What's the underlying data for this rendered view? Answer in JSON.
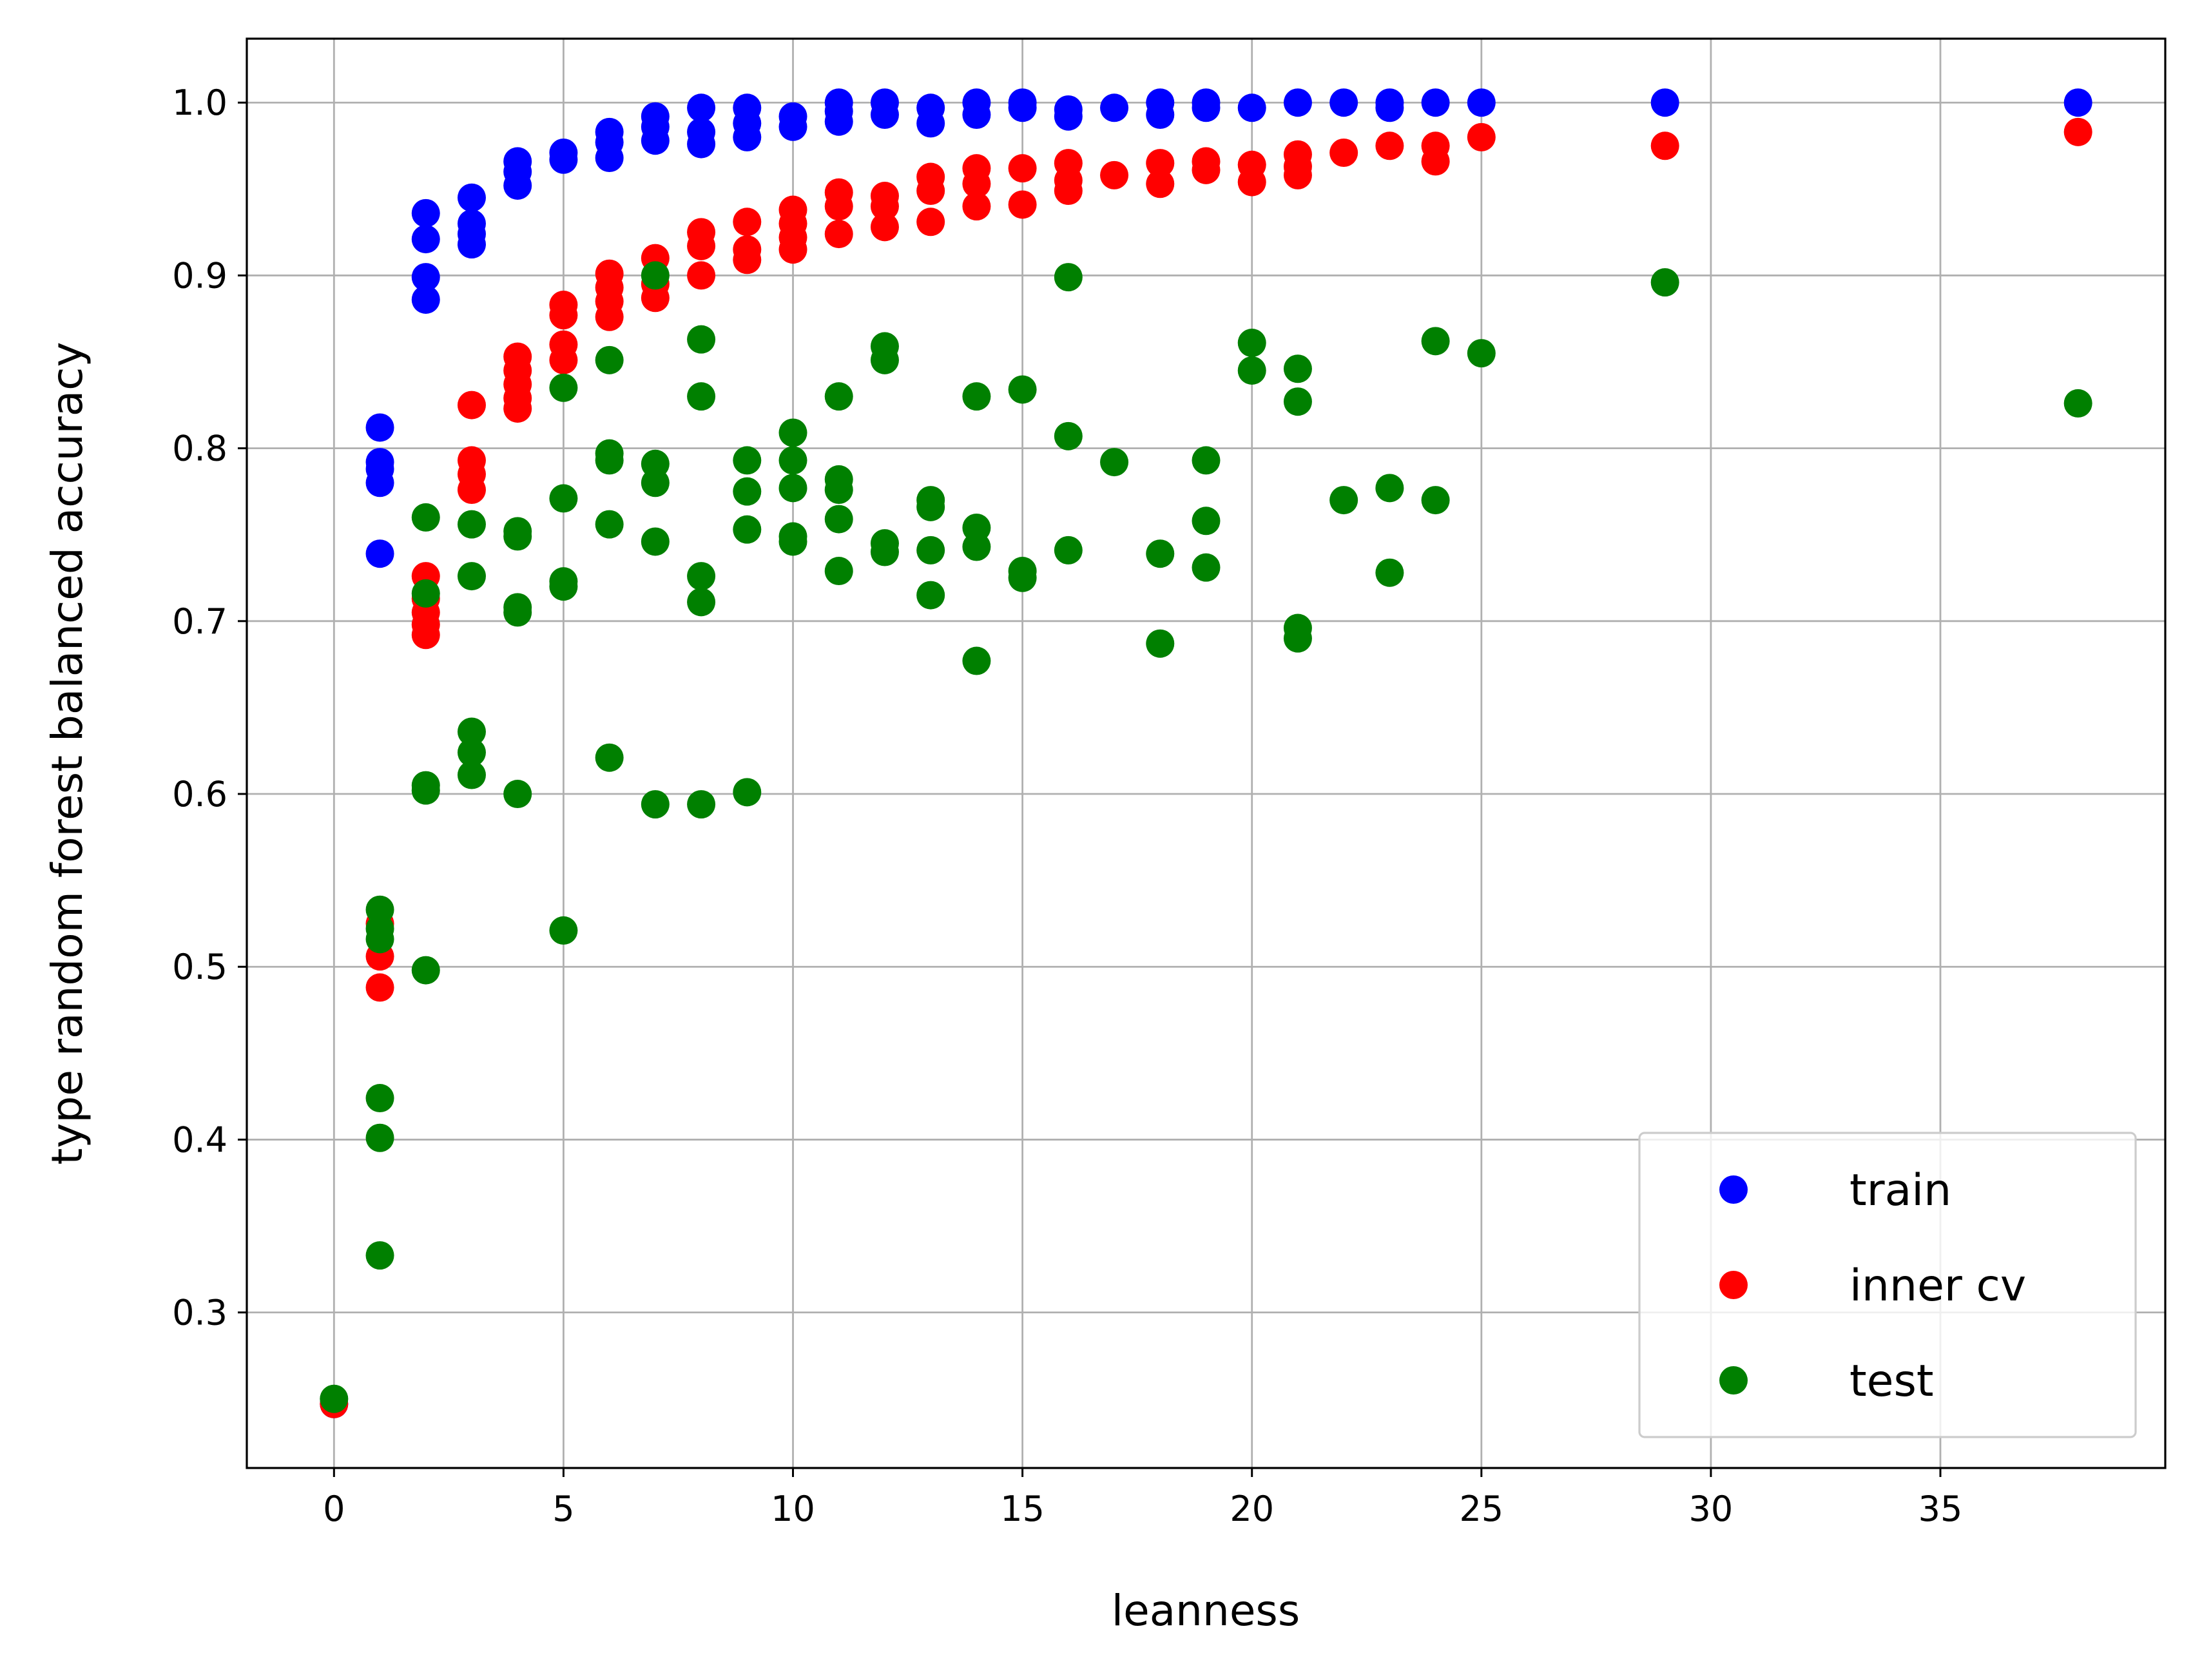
{
  "chart_data": {
    "type": "scatter",
    "title": "",
    "xlabel": "leanness",
    "ylabel": "type random forest balanced accuracy",
    "xlim": [
      -1.9,
      39.9
    ],
    "ylim": [
      0.21,
      1.037
    ],
    "xticks": [
      0,
      5,
      10,
      15,
      20,
      25,
      30,
      35
    ],
    "yticks": [
      0.3,
      0.4,
      0.5,
      0.6,
      0.7,
      0.8,
      0.9,
      1.0
    ],
    "xtick_labels": [
      "0",
      "5",
      "10",
      "15",
      "20",
      "25",
      "30",
      "35"
    ],
    "ytick_labels": [
      "0.3",
      "0.4",
      "0.5",
      "0.6",
      "0.7",
      "0.8",
      "0.9",
      "1.0"
    ],
    "grid": true,
    "legend_position": "lower-right",
    "series": [
      {
        "name": "train",
        "color": "#0000ff",
        "points": [
          [
            0,
            0.247
          ],
          [
            1,
            0.812
          ],
          [
            1,
            0.792
          ],
          [
            1,
            0.788
          ],
          [
            1,
            0.78
          ],
          [
            1,
            0.739
          ],
          [
            2,
            0.936
          ],
          [
            2,
            0.921
          ],
          [
            2,
            0.899
          ],
          [
            2,
            0.886
          ],
          [
            3,
            0.945
          ],
          [
            3,
            0.93
          ],
          [
            3,
            0.924
          ],
          [
            3,
            0.918
          ],
          [
            4,
            0.966
          ],
          [
            4,
            0.96
          ],
          [
            4,
            0.952
          ],
          [
            5,
            0.971
          ],
          [
            5,
            0.967
          ],
          [
            6,
            0.983
          ],
          [
            6,
            0.977
          ],
          [
            6,
            0.968
          ],
          [
            7,
            0.992
          ],
          [
            7,
            0.986
          ],
          [
            7,
            0.978
          ],
          [
            8,
            0.997
          ],
          [
            8,
            0.983
          ],
          [
            8,
            0.976
          ],
          [
            9,
            0.997
          ],
          [
            9,
            0.988
          ],
          [
            9,
            0.98
          ],
          [
            10,
            0.992
          ],
          [
            10,
            0.986
          ],
          [
            11,
            1.0
          ],
          [
            11,
            0.995
          ],
          [
            11,
            0.989
          ],
          [
            12,
            1.0
          ],
          [
            12,
            0.993
          ],
          [
            13,
            0.997
          ],
          [
            13,
            0.988
          ],
          [
            14,
            1.0
          ],
          [
            14,
            0.993
          ],
          [
            15,
            1.0
          ],
          [
            15,
            0.997
          ],
          [
            16,
            0.996
          ],
          [
            16,
            0.992
          ],
          [
            17,
            0.997
          ],
          [
            18,
            1.0
          ],
          [
            18,
            0.993
          ],
          [
            19,
            1.0
          ],
          [
            19,
            0.997
          ],
          [
            20,
            0.997
          ],
          [
            21,
            1.0
          ],
          [
            22,
            1.0
          ],
          [
            23,
            1.0
          ],
          [
            23,
            0.997
          ],
          [
            24,
            1.0
          ],
          [
            25,
            1.0
          ],
          [
            29,
            1.0
          ],
          [
            38,
            1.0
          ]
        ]
      },
      {
        "name": "inner cv",
        "color": "#ff0000",
        "points": [
          [
            0,
            0.247
          ],
          [
            1,
            0.525
          ],
          [
            1,
            0.506
          ],
          [
            1,
            0.488
          ],
          [
            2,
            0.726
          ],
          [
            2,
            0.713
          ],
          [
            2,
            0.705
          ],
          [
            2,
            0.698
          ],
          [
            2,
            0.692
          ],
          [
            3,
            0.825
          ],
          [
            3,
            0.793
          ],
          [
            3,
            0.785
          ],
          [
            3,
            0.776
          ],
          [
            4,
            0.853
          ],
          [
            4,
            0.845
          ],
          [
            4,
            0.837
          ],
          [
            4,
            0.829
          ],
          [
            4,
            0.823
          ],
          [
            5,
            0.883
          ],
          [
            5,
            0.877
          ],
          [
            5,
            0.86
          ],
          [
            5,
            0.851
          ],
          [
            6,
            0.901
          ],
          [
            6,
            0.893
          ],
          [
            6,
            0.885
          ],
          [
            6,
            0.876
          ],
          [
            7,
            0.91
          ],
          [
            7,
            0.895
          ],
          [
            7,
            0.887
          ],
          [
            8,
            0.925
          ],
          [
            8,
            0.917
          ],
          [
            8,
            0.9
          ],
          [
            9,
            0.931
          ],
          [
            9,
            0.915
          ],
          [
            9,
            0.909
          ],
          [
            10,
            0.938
          ],
          [
            10,
            0.93
          ],
          [
            10,
            0.922
          ],
          [
            10,
            0.915
          ],
          [
            11,
            0.948
          ],
          [
            11,
            0.94
          ],
          [
            11,
            0.924
          ],
          [
            12,
            0.946
          ],
          [
            12,
            0.94
          ],
          [
            12,
            0.928
          ],
          [
            13,
            0.957
          ],
          [
            13,
            0.949
          ],
          [
            13,
            0.931
          ],
          [
            14,
            0.962
          ],
          [
            14,
            0.953
          ],
          [
            14,
            0.94
          ],
          [
            15,
            0.962
          ],
          [
            15,
            0.941
          ],
          [
            16,
            0.965
          ],
          [
            16,
            0.955
          ],
          [
            16,
            0.949
          ],
          [
            17,
            0.958
          ],
          [
            18,
            0.965
          ],
          [
            18,
            0.953
          ],
          [
            19,
            0.966
          ],
          [
            19,
            0.961
          ],
          [
            20,
            0.964
          ],
          [
            20,
            0.954
          ],
          [
            21,
            0.97
          ],
          [
            21,
            0.963
          ],
          [
            21,
            0.958
          ],
          [
            22,
            0.971
          ],
          [
            23,
            0.975
          ],
          [
            24,
            0.975
          ],
          [
            24,
            0.966
          ],
          [
            25,
            0.98
          ],
          [
            29,
            0.975
          ],
          [
            38,
            0.983
          ]
        ]
      },
      {
        "name": "test",
        "color": "#008000",
        "points": [
          [
            0,
            0.25
          ],
          [
            1,
            0.533
          ],
          [
            1,
            0.522
          ],
          [
            1,
            0.516
          ],
          [
            1,
            0.424
          ],
          [
            1,
            0.401
          ],
          [
            1,
            0.333
          ],
          [
            2,
            0.76
          ],
          [
            2,
            0.716
          ],
          [
            2,
            0.605
          ],
          [
            2,
            0.602
          ],
          [
            2,
            0.498
          ],
          [
            3,
            0.756
          ],
          [
            3,
            0.726
          ],
          [
            3,
            0.636
          ],
          [
            3,
            0.624
          ],
          [
            3,
            0.611
          ],
          [
            4,
            0.752
          ],
          [
            4,
            0.749
          ],
          [
            4,
            0.708
          ],
          [
            4,
            0.705
          ],
          [
            4,
            0.6
          ],
          [
            5,
            0.835
          ],
          [
            5,
            0.771
          ],
          [
            5,
            0.723
          ],
          [
            5,
            0.72
          ],
          [
            5,
            0.521
          ],
          [
            6,
            0.851
          ],
          [
            6,
            0.797
          ],
          [
            6,
            0.793
          ],
          [
            6,
            0.756
          ],
          [
            6,
            0.621
          ],
          [
            7,
            0.9
          ],
          [
            7,
            0.791
          ],
          [
            7,
            0.78
          ],
          [
            7,
            0.746
          ],
          [
            7,
            0.594
          ],
          [
            8,
            0.863
          ],
          [
            8,
            0.83
          ],
          [
            8,
            0.726
          ],
          [
            8,
            0.711
          ],
          [
            8,
            0.594
          ],
          [
            9,
            0.793
          ],
          [
            9,
            0.775
          ],
          [
            9,
            0.753
          ],
          [
            9,
            0.601
          ],
          [
            10,
            0.809
          ],
          [
            10,
            0.793
          ],
          [
            10,
            0.777
          ],
          [
            10,
            0.749
          ],
          [
            10,
            0.746
          ],
          [
            11,
            0.83
          ],
          [
            11,
            0.782
          ],
          [
            11,
            0.776
          ],
          [
            11,
            0.759
          ],
          [
            11,
            0.729
          ],
          [
            12,
            0.859
          ],
          [
            12,
            0.851
          ],
          [
            12,
            0.745
          ],
          [
            12,
            0.74
          ],
          [
            13,
            0.77
          ],
          [
            13,
            0.766
          ],
          [
            13,
            0.741
          ],
          [
            13,
            0.715
          ],
          [
            14,
            0.83
          ],
          [
            14,
            0.754
          ],
          [
            14,
            0.743
          ],
          [
            14,
            0.677
          ],
          [
            15,
            0.834
          ],
          [
            15,
            0.729
          ],
          [
            15,
            0.725
          ],
          [
            16,
            0.899
          ],
          [
            16,
            0.807
          ],
          [
            16,
            0.741
          ],
          [
            17,
            0.792
          ],
          [
            18,
            0.739
          ],
          [
            18,
            0.687
          ],
          [
            19,
            0.793
          ],
          [
            19,
            0.758
          ],
          [
            19,
            0.731
          ],
          [
            20,
            0.861
          ],
          [
            20,
            0.845
          ],
          [
            21,
            0.846
          ],
          [
            21,
            0.827
          ],
          [
            21,
            0.696
          ],
          [
            21,
            0.69
          ],
          [
            22,
            0.77
          ],
          [
            23,
            0.777
          ],
          [
            23,
            0.728
          ],
          [
            24,
            0.862
          ],
          [
            24,
            0.77
          ],
          [
            25,
            0.855
          ],
          [
            29,
            0.896
          ],
          [
            38,
            0.826
          ]
        ]
      }
    ]
  }
}
